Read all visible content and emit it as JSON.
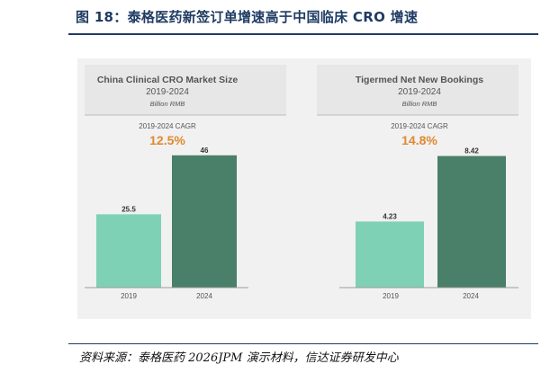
{
  "figure_title": "图 18：泰格医药新签订单增速高于中国临床 CRO 增速",
  "source_note": "资料来源：泰格医药 2026JPM 演示材料，信达证券研发中心",
  "colors": {
    "title": "#1f3b63",
    "bar_2019": "#7fd1b5",
    "bar_2024": "#4a7f6a",
    "cagr": "#e0892f",
    "text_gray": "#555555",
    "panel": "#e7e7e7"
  },
  "chart_data": [
    {
      "type": "bar",
      "title": "China Clinical CRO Market Size",
      "subtitle": "2019-2024",
      "unit": "Billion RMB",
      "cagr_label": "2019-2024 CAGR",
      "cagr_value": "12.5%",
      "categories": [
        "2019",
        "2024"
      ],
      "values": [
        25.5,
        46
      ],
      "value_labels": [
        "25.5",
        "46"
      ],
      "xlabel": "",
      "ylabel": "",
      "ylim": [
        0,
        50
      ],
      "grid": false,
      "legend": "none"
    },
    {
      "type": "bar",
      "title": "Tigermed Net New Bookings",
      "subtitle": "2019-2024",
      "unit": "Billion RMB",
      "cagr_label": "2019-2024 CAGR",
      "cagr_value": "14.8%",
      "categories": [
        "2019",
        "2024"
      ],
      "values": [
        4.23,
        8.42
      ],
      "value_labels": [
        "4.23",
        "8.42"
      ],
      "xlabel": "",
      "ylabel": "",
      "ylim": [
        0,
        9.2
      ],
      "grid": false,
      "legend": "none"
    }
  ]
}
